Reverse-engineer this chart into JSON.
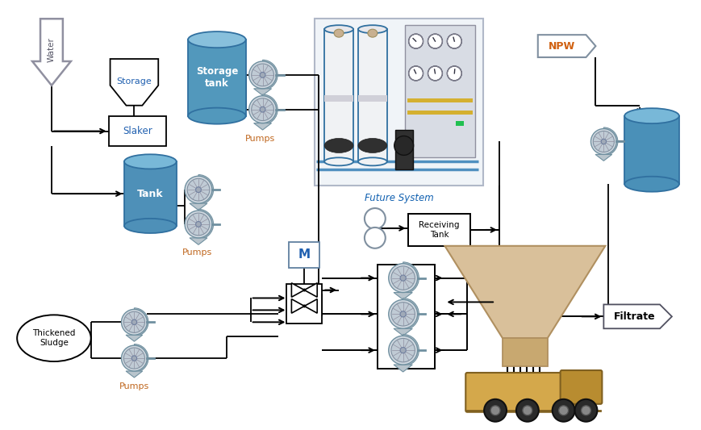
{
  "bg_color": "#ffffff",
  "lc": "#000000",
  "blue1": "#5ba3c9",
  "blue2": "#3d7faa",
  "blue3": "#4a8fbf",
  "blue_light": "#a8cfe0",
  "pump_outer": "#c8d0d8",
  "pump_inner": "#9aaabb",
  "pump_dark": "#7090a8",
  "hopper_fill": "#d9c09a",
  "hopper_edge": "#b09060",
  "truck_body": "#d4a84b",
  "truck_cab": "#b88c30",
  "text_blue": "#1a5080",
  "text_orange": "#c06820",
  "text_dark": "#222222",
  "npw_orange": "#d06010",
  "slaker_blue": "#2060b0",
  "future_blue": "#1060b0",
  "water_label": "Water",
  "storage_label": "Storage",
  "slaker_label": "Slaker",
  "tank_label": "Tank",
  "storage_tank_label": "Storage\ntank",
  "pumps_label": "Pumps",
  "future_system_label": "Future System",
  "npw_label": "NPW",
  "receiving_tank_label": "Receiving\nTank",
  "thickened_sludge_label": "Thickened\nSludge",
  "filtrate_label": "Filtrate",
  "motor_label": "M"
}
